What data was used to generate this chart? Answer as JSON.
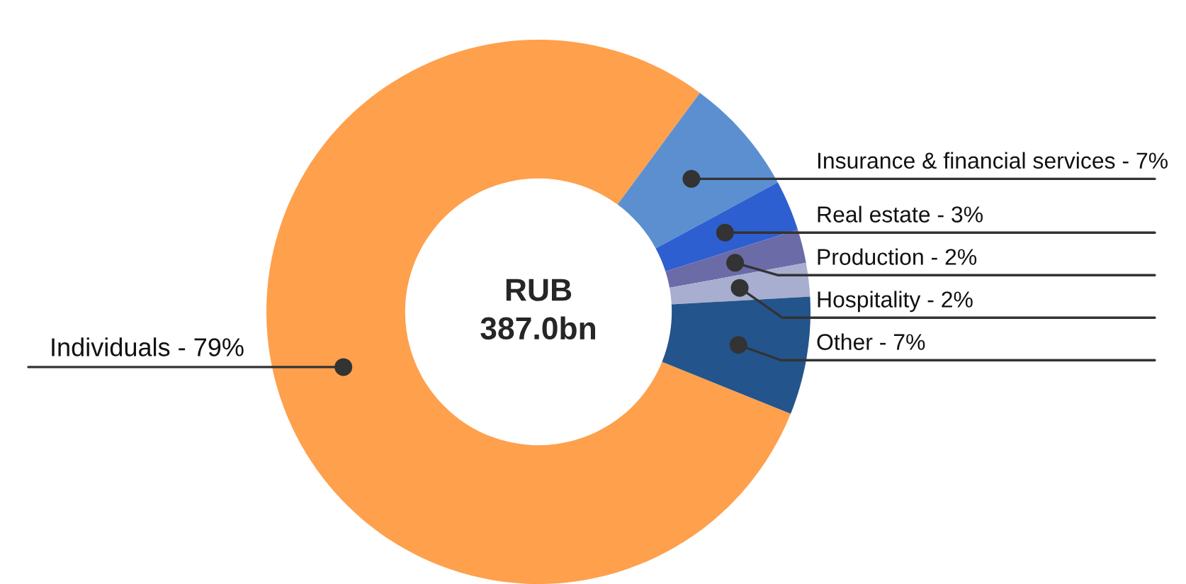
{
  "chart_data": {
    "type": "donut",
    "categories": [
      "Individuals",
      "Insurance & financial services",
      "Real estate",
      "Production",
      "Hospitality",
      "Other"
    ],
    "values": [
      79,
      7,
      3,
      2,
      2,
      7
    ],
    "value_labels": [
      "79%",
      "7%",
      "3%",
      "2%",
      "2%",
      "7%"
    ],
    "colors": [
      "#ffa04d",
      "#5b8fd0",
      "#2e5fd0",
      "#6b6ba8",
      "#a8aecf",
      "#23548c"
    ],
    "annotations": [
      "RUB\n387.0bn"
    ],
    "legend": false
  }
}
